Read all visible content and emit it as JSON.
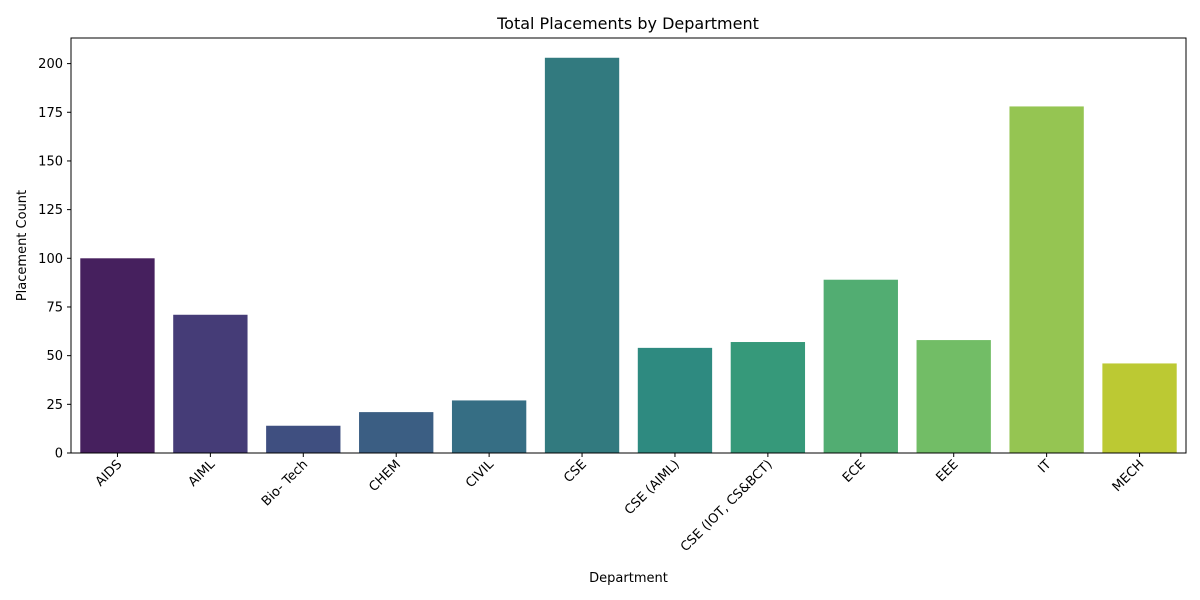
{
  "chart_data": {
    "type": "bar",
    "title": "Total Placements by Department",
    "xlabel": "Department",
    "ylabel": "Placement Count",
    "categories": [
      "AIDS",
      "AIML",
      "Bio- Tech",
      "CHEM",
      "CIVIL",
      "CSE",
      "CSE (AIML)",
      "CSE (IOT, CS&BCT)",
      "ECE",
      "EEE",
      "IT",
      "MECH"
    ],
    "values": [
      100,
      71,
      14,
      21,
      27,
      203,
      54,
      57,
      89,
      58,
      178,
      46
    ],
    "colors": [
      "#46205e",
      "#453c77",
      "#3f4f80",
      "#3b5e83",
      "#366e84",
      "#327a7f",
      "#2e8a80",
      "#36997a",
      "#52ad72",
      "#72bd66",
      "#95c552",
      "#bcc933"
    ],
    "yticks": [
      0,
      25,
      50,
      75,
      100,
      125,
      150,
      175,
      200
    ],
    "ylim": [
      0,
      213.15
    ],
    "grid": false,
    "legend": "none"
  }
}
